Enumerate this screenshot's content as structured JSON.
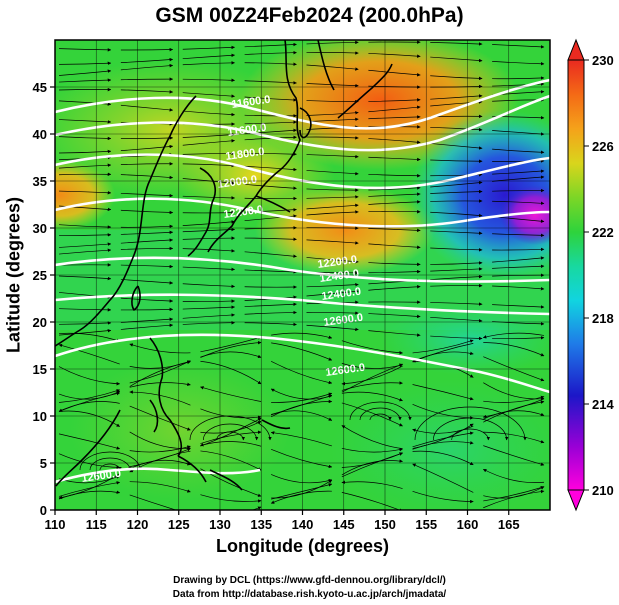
{
  "title": "GSM 00Z24Feb2024 (200.0hPa)",
  "xlabel": "Longitude (degrees)",
  "ylabel": "Latitude  (degrees)",
  "x_ticks": [
    "110",
    "115",
    "120",
    "125",
    "130",
    "135",
    "140",
    "145",
    "150",
    "155",
    "160",
    "165"
  ],
  "y_ticks": [
    "0",
    "5",
    "10",
    "15",
    "20",
    "25",
    "30",
    "35",
    "40",
    "45"
  ],
  "colorbar": {
    "ticks": [
      "210",
      "214",
      "218",
      "222",
      "226",
      "230"
    ],
    "range": [
      210,
      230
    ]
  },
  "credits": {
    "line1": "Drawing by DCL (https://www.gfd-dennou.org/library/dcl/)",
    "line2": "Data from http://database.rish.kyoto-u.ac.jp/arch/jmadata/"
  },
  "contour_labels": [
    "11600.0",
    "11800.0",
    "12000.0",
    "12200.0",
    "12400.0",
    "12600.0"
  ],
  "chart_data": {
    "type": "heatmap",
    "title": "GSM 00Z24Feb2024 (200.0hPa)",
    "xlabel": "Longitude (degrees)",
    "ylabel": "Latitude  (degrees)",
    "xlim": [
      110,
      170
    ],
    "ylim": [
      0,
      50
    ],
    "colorbar_range": [
      210,
      230
    ],
    "contour_values": [
      11600,
      11800,
      12000,
      12200,
      12400,
      12600
    ]
  }
}
